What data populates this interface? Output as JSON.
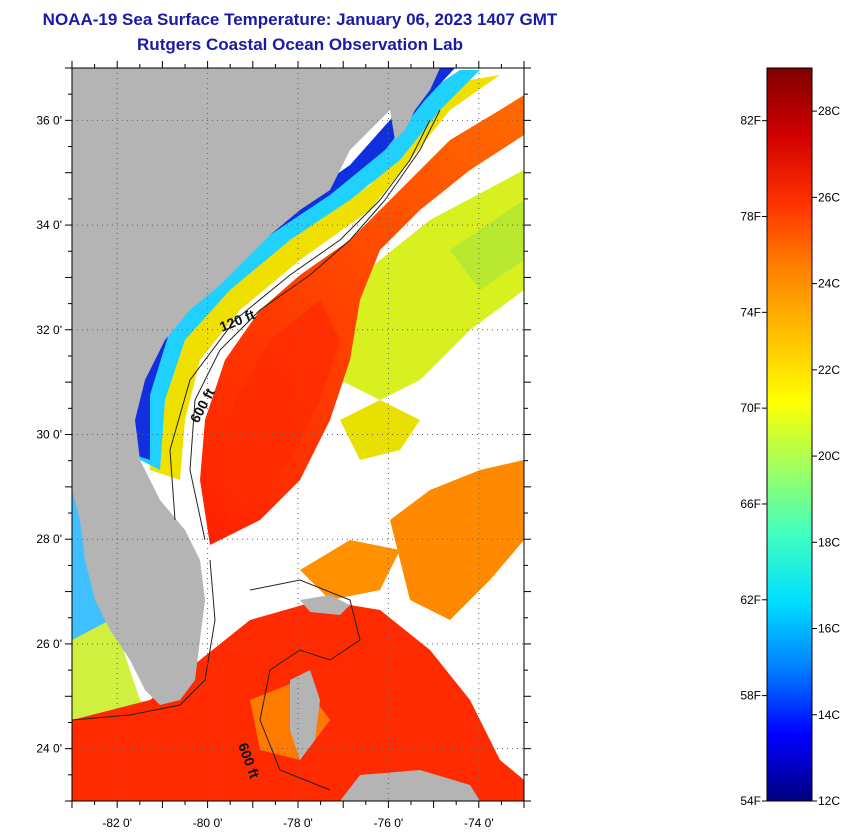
{
  "title": "NOAA-19 Sea Surface Temperature:  January 06, 2023 1407 GMT",
  "subtitle": "Rutgers Coastal Ocean Observation Lab",
  "map": {
    "lon_ticks": [
      "-82 0'",
      "-80 0'",
      "-78 0'",
      "-76 0'",
      "-74 0'"
    ],
    "lon_values": [
      -82,
      -80,
      -78,
      -76,
      -74
    ],
    "lat_ticks": [
      "36 0'",
      "34 0'",
      "32 0'",
      "30 0'",
      "28 0'",
      "26 0'",
      "24 0'"
    ],
    "lat_values": [
      36,
      34,
      32,
      30,
      28,
      26,
      24
    ],
    "lon_range": [
      -83,
      -73
    ],
    "lat_range": [
      23,
      37
    ],
    "contour_labels": [
      "120 ft",
      "600 ft",
      "600 ft"
    ],
    "land_color": "#b4b4b4"
  },
  "colorbar": {
    "f_labels": [
      "82F",
      "78F",
      "74F",
      "70F",
      "66F",
      "62F",
      "58F",
      "54F"
    ],
    "c_labels": [
      "28C",
      "26C",
      "24C",
      "22C",
      "20C",
      "18C",
      "16C",
      "14C",
      "12C"
    ],
    "colors": [
      "#000080",
      "#0000ff",
      "#0080ff",
      "#00e0ff",
      "#40ffc0",
      "#a0ff60",
      "#ffff00",
      "#ffc000",
      "#ff8000",
      "#ff3000",
      "#d00000",
      "#800000"
    ]
  }
}
